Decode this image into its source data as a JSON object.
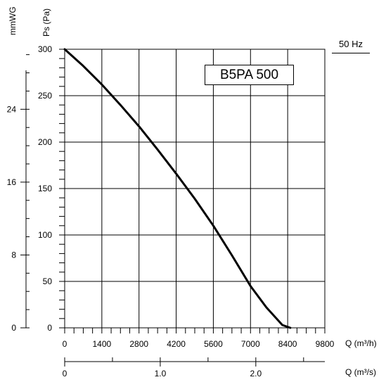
{
  "chart_data": {
    "type": "line",
    "title": "B5PA 500",
    "frequency_label": "50 Hz",
    "y_left_label": "mmWG",
    "y_left_ticks": [
      "0",
      "8",
      "16",
      "24"
    ],
    "ylabel": "Ps (Pa)",
    "y_ticks": [
      "0",
      "50",
      "100",
      "150",
      "200",
      "250",
      "300"
    ],
    "ylim": [
      0,
      300
    ],
    "xlabel": "Q (m³/h)",
    "x_ticks": [
      "0",
      "1400",
      "2800",
      "4200",
      "5600",
      "7000",
      "8400",
      "9800"
    ],
    "xlim": [
      0,
      9800
    ],
    "x2label": "Q (m³/s)",
    "x2_ticks": [
      "0",
      "1.0",
      "2.0"
    ],
    "grid": true,
    "series": [
      {
        "x": [
          0,
          700,
          1400,
          2100,
          2800,
          3500,
          4200,
          4900,
          5600,
          6300,
          7000,
          7600,
          8200,
          8500
        ],
        "y": [
          300,
          282,
          262,
          240,
          217,
          192,
          166,
          139,
          110,
          78,
          45,
          22,
          3,
          0
        ]
      }
    ]
  }
}
